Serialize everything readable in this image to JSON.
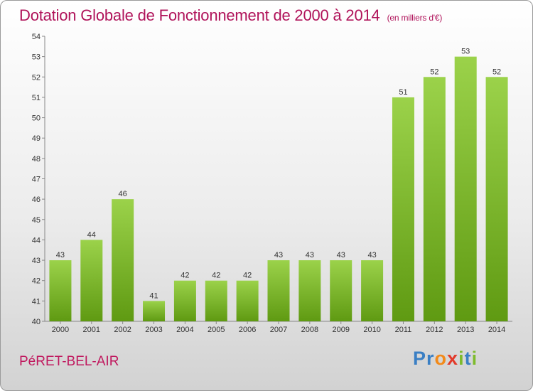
{
  "title": "Dotation Globale de Fonctionnement de 2000 à 2014",
  "subtitle": "(en milliers d'€)",
  "commune": "PéRET-BEL-AIR",
  "logo": {
    "letters": [
      "P",
      "r",
      "o",
      "x",
      "i",
      "t",
      "i"
    ],
    "colors": [
      "#3a7fc4",
      "#3a7fc4",
      "#f28a1a",
      "#e23a2a",
      "#7dbb2c",
      "#3a7fc4",
      "#7dbb2c"
    ]
  },
  "colors": {
    "bar_top": "#9bd24a",
    "bar_bottom": "#5f9a12",
    "title": "#b0135a"
  },
  "chart_data": {
    "type": "bar",
    "categories": [
      "2000",
      "2001",
      "2002",
      "2003",
      "2004",
      "2005",
      "2006",
      "2007",
      "2008",
      "2009",
      "2010",
      "2011",
      "2012",
      "2013",
      "2014"
    ],
    "values": [
      43,
      44,
      46,
      41,
      42,
      42,
      42,
      43,
      43,
      43,
      43,
      51,
      52,
      53,
      52
    ],
    "ylim": [
      40,
      54
    ],
    "yticks": [
      40,
      41,
      42,
      43,
      44,
      45,
      46,
      47,
      48,
      49,
      50,
      51,
      52,
      53,
      54
    ],
    "grid": false,
    "legend": "none"
  }
}
